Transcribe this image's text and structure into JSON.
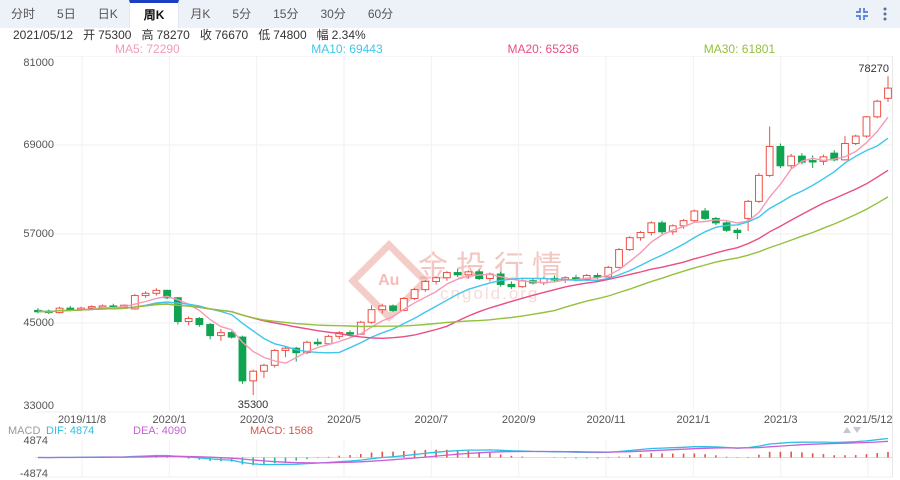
{
  "tabs": [
    {
      "label": "分时",
      "active": false
    },
    {
      "label": "5日",
      "active": false
    },
    {
      "label": "日K",
      "active": false
    },
    {
      "label": "周K",
      "active": true
    },
    {
      "label": "月K",
      "active": false
    },
    {
      "label": "5分",
      "active": false
    },
    {
      "label": "15分",
      "active": false
    },
    {
      "label": "30分",
      "active": false
    },
    {
      "label": "60分",
      "active": false
    }
  ],
  "icons": {
    "collapse": "collapse-arrows-icon",
    "menu": "kebab-menu-icon",
    "scale_up": "triangle-up-icon",
    "scale_down": "triangle-down-icon"
  },
  "info": {
    "date": "2021/05/12",
    "open_label": "开",
    "open": "75300",
    "high_label": "高",
    "high": "78270",
    "close_label": "收",
    "close": "76670",
    "low_label": "低",
    "low": "74800",
    "change_label": "幅",
    "change": "2.34%"
  },
  "ma_legend": [
    {
      "text": "MA5: 72290",
      "color": "#f49bb7"
    },
    {
      "text": "MA10: 69443",
      "color": "#3ec6ee"
    },
    {
      "text": "MA20: 65236",
      "color": "#e94d87"
    },
    {
      "text": "MA30: 61801",
      "color": "#94c13d"
    }
  ],
  "macd": {
    "panel_label": "MACD",
    "dif_text": "DIF: 4874",
    "dea_text": "DEA: 4090",
    "macd_text": "MACD: 1568",
    "axis_max": "4874",
    "axis_min": "-4874"
  },
  "annotations": {
    "high": "78270",
    "low": "35300"
  },
  "watermark": {
    "badge": "Au",
    "title": "金投行情",
    "domain": "cngold.org"
  },
  "colors": {
    "up": "#ee4f45",
    "down": "#10a350",
    "ma5": "#f49bb7",
    "ma10": "#3ec6ee",
    "ma20": "#e94d87",
    "ma30": "#94c13d",
    "dif": "#2bc0e6",
    "dea": "#c95fd5",
    "hist_pos": "#e0534b",
    "hist_neg": "#2fb3a2",
    "accent_tab": "#1c3ec0",
    "grid": "#efefef",
    "axis_text": "#555555",
    "icon_blue": "#4d7bd9"
  },
  "chart_data": {
    "type": "candlestick",
    "title": "周K (weekly K-line) gold price chart with MA overlays and MACD sub-panel",
    "ylim": [
      33000,
      81000
    ],
    "y_ticks": [
      81000,
      69000,
      57000,
      45000,
      33000
    ],
    "x_labels": [
      "2019/11/8",
      "2020/1",
      "2020/3",
      "2020/5",
      "2020/7",
      "2020/9",
      "2020/11",
      "2021/1",
      "2021/3",
      "2021/5/12"
    ],
    "overlays": [
      "MA5",
      "MA10",
      "MA20",
      "MA30"
    ],
    "sub_panel": {
      "type": "MACD",
      "dif": 4874,
      "dea": 4090,
      "macd": 1568,
      "axis": [
        4874,
        -4874
      ]
    },
    "marked_high": 78270,
    "marked_low": 35300,
    "last_candle": {
      "open": 75300,
      "high": 78270,
      "low": 74800,
      "close": 76670,
      "change_pct": 2.34
    },
    "candles": [
      [
        46700,
        47000,
        46300,
        46600
      ],
      [
        46600,
        46800,
        46200,
        46400
      ],
      [
        46400,
        47200,
        46300,
        47000
      ],
      [
        47000,
        47300,
        46600,
        46800
      ],
      [
        46800,
        47200,
        46600,
        47000
      ],
      [
        47000,
        47400,
        46800,
        47200
      ],
      [
        47200,
        47500,
        46900,
        47300
      ],
      [
        47300,
        47600,
        47000,
        47100
      ],
      [
        47100,
        47500,
        46900,
        47400
      ],
      [
        46900,
        48900,
        46800,
        48700
      ],
      [
        48700,
        49300,
        48400,
        49000
      ],
      [
        49000,
        49700,
        48700,
        49400
      ],
      [
        49400,
        49500,
        48200,
        48400
      ],
      [
        48400,
        48500,
        44800,
        45200
      ],
      [
        45200,
        45900,
        44700,
        45600
      ],
      [
        45600,
        45800,
        44500,
        44800
      ],
      [
        44800,
        45000,
        42800,
        43300
      ],
      [
        43300,
        44200,
        42600,
        43700
      ],
      [
        43700,
        43900,
        42900,
        43100
      ],
      [
        43100,
        43300,
        36800,
        37200
      ],
      [
        37200,
        38700,
        35300,
        38500
      ],
      [
        38500,
        39500,
        37600,
        39300
      ],
      [
        39300,
        41500,
        39000,
        41300
      ],
      [
        41300,
        41800,
        40400,
        41600
      ],
      [
        41600,
        41800,
        39800,
        41000
      ],
      [
        41000,
        42600,
        40800,
        42400
      ],
      [
        42400,
        42900,
        41900,
        42200
      ],
      [
        42200,
        43400,
        42000,
        43200
      ],
      [
        43200,
        43900,
        42800,
        43700
      ],
      [
        43700,
        44000,
        43200,
        43500
      ],
      [
        43500,
        45300,
        43400,
        45100
      ],
      [
        45100,
        47400,
        44900,
        46800
      ],
      [
        46800,
        47600,
        46300,
        47300
      ],
      [
        47300,
        47500,
        46500,
        46700
      ],
      [
        46700,
        48500,
        46600,
        48300
      ],
      [
        48300,
        49700,
        48100,
        49500
      ],
      [
        49500,
        50800,
        49200,
        50600
      ],
      [
        50600,
        51300,
        50200,
        51100
      ],
      [
        51100,
        52000,
        50700,
        51800
      ],
      [
        51800,
        52300,
        51200,
        51500
      ],
      [
        51500,
        52100,
        51000,
        51900
      ],
      [
        51900,
        52200,
        50800,
        51000
      ],
      [
        51000,
        51800,
        50600,
        51600
      ],
      [
        51600,
        51900,
        49900,
        50200
      ],
      [
        50200,
        50600,
        49600,
        49900
      ],
      [
        49900,
        50900,
        49700,
        50700
      ],
      [
        50700,
        51100,
        50200,
        50400
      ],
      [
        50400,
        51200,
        50100,
        51000
      ],
      [
        51000,
        51400,
        50500,
        50800
      ],
      [
        50800,
        51300,
        50400,
        51100
      ],
      [
        51100,
        51500,
        50600,
        50900
      ],
      [
        50900,
        51600,
        50700,
        51400
      ],
      [
        51400,
        51700,
        50900,
        51200
      ],
      [
        51200,
        52700,
        51100,
        52500
      ],
      [
        52500,
        55100,
        52400,
        54900
      ],
      [
        54900,
        56700,
        54700,
        56500
      ],
      [
        56500,
        57400,
        56100,
        57200
      ],
      [
        57200,
        58700,
        56800,
        58500
      ],
      [
        58500,
        58800,
        57000,
        57300
      ],
      [
        57300,
        58300,
        56900,
        58100
      ],
      [
        58100,
        59000,
        57700,
        58800
      ],
      [
        58800,
        60300,
        58600,
        60100
      ],
      [
        60100,
        60500,
        58900,
        59100
      ],
      [
        59100,
        59300,
        58200,
        58500
      ],
      [
        58500,
        58700,
        57300,
        57500
      ],
      [
        57500,
        57800,
        56300,
        57200
      ],
      [
        59100,
        61600,
        57400,
        61400
      ],
      [
        61400,
        65200,
        61200,
        64900
      ],
      [
        64900,
        71500,
        64700,
        68800
      ],
      [
        68800,
        69200,
        65900,
        66200
      ],
      [
        66200,
        67800,
        65800,
        67500
      ],
      [
        67500,
        67900,
        66400,
        66700
      ],
      [
        66900,
        67600,
        65900,
        66800
      ],
      [
        66800,
        67700,
        66300,
        67400
      ],
      [
        67900,
        68300,
        66800,
        67000
      ],
      [
        67000,
        70200,
        66900,
        69200
      ],
      [
        69200,
        70400,
        69000,
        70200
      ],
      [
        70200,
        72900,
        70000,
        72800
      ],
      [
        72800,
        75100,
        72600,
        74900
      ],
      [
        75300,
        78270,
        74800,
        76670
      ]
    ]
  }
}
